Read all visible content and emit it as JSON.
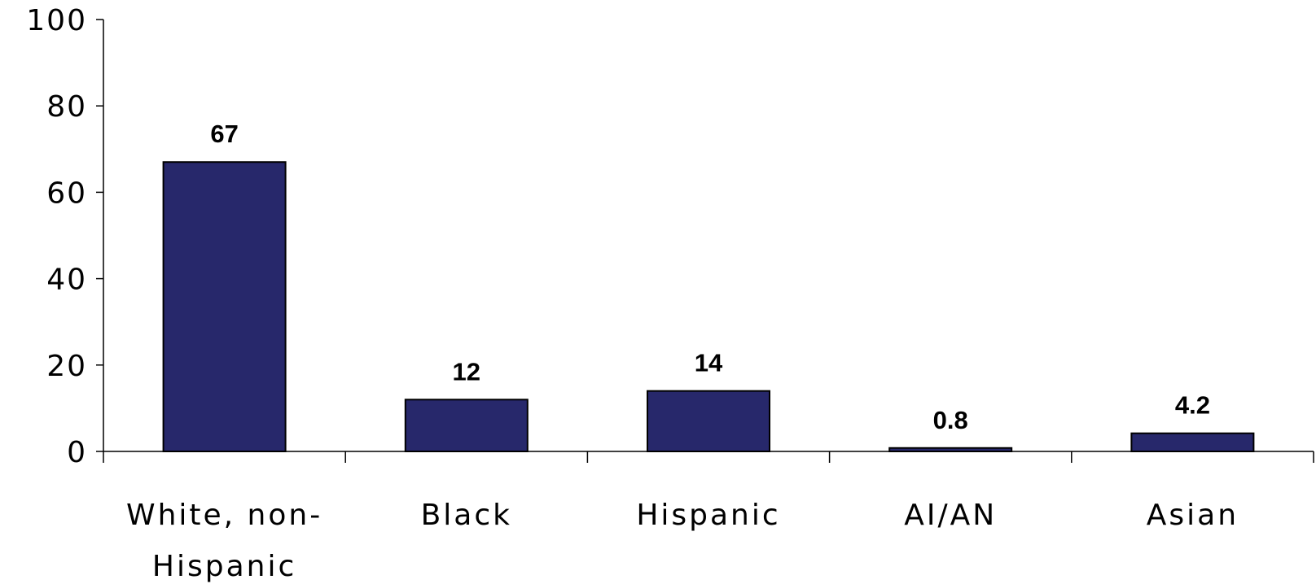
{
  "chart_data": {
    "type": "bar",
    "categories": [
      [
        "White, non-",
        "Hispanic"
      ],
      [
        "Black"
      ],
      [
        "Hispanic"
      ],
      [
        "AI/AN"
      ],
      [
        "Asian"
      ]
    ],
    "values": [
      67,
      12,
      14,
      0.8,
      4.2
    ],
    "data_labels": [
      "67",
      "12",
      "14",
      "0.8",
      "4.2"
    ],
    "ylim": [
      0,
      100
    ],
    "yticks": [
      0,
      20,
      40,
      60,
      80,
      100
    ],
    "grid": false,
    "legend": "none",
    "title": "",
    "xlabel": "",
    "ylabel": "",
    "bar_color": "#27286b"
  }
}
